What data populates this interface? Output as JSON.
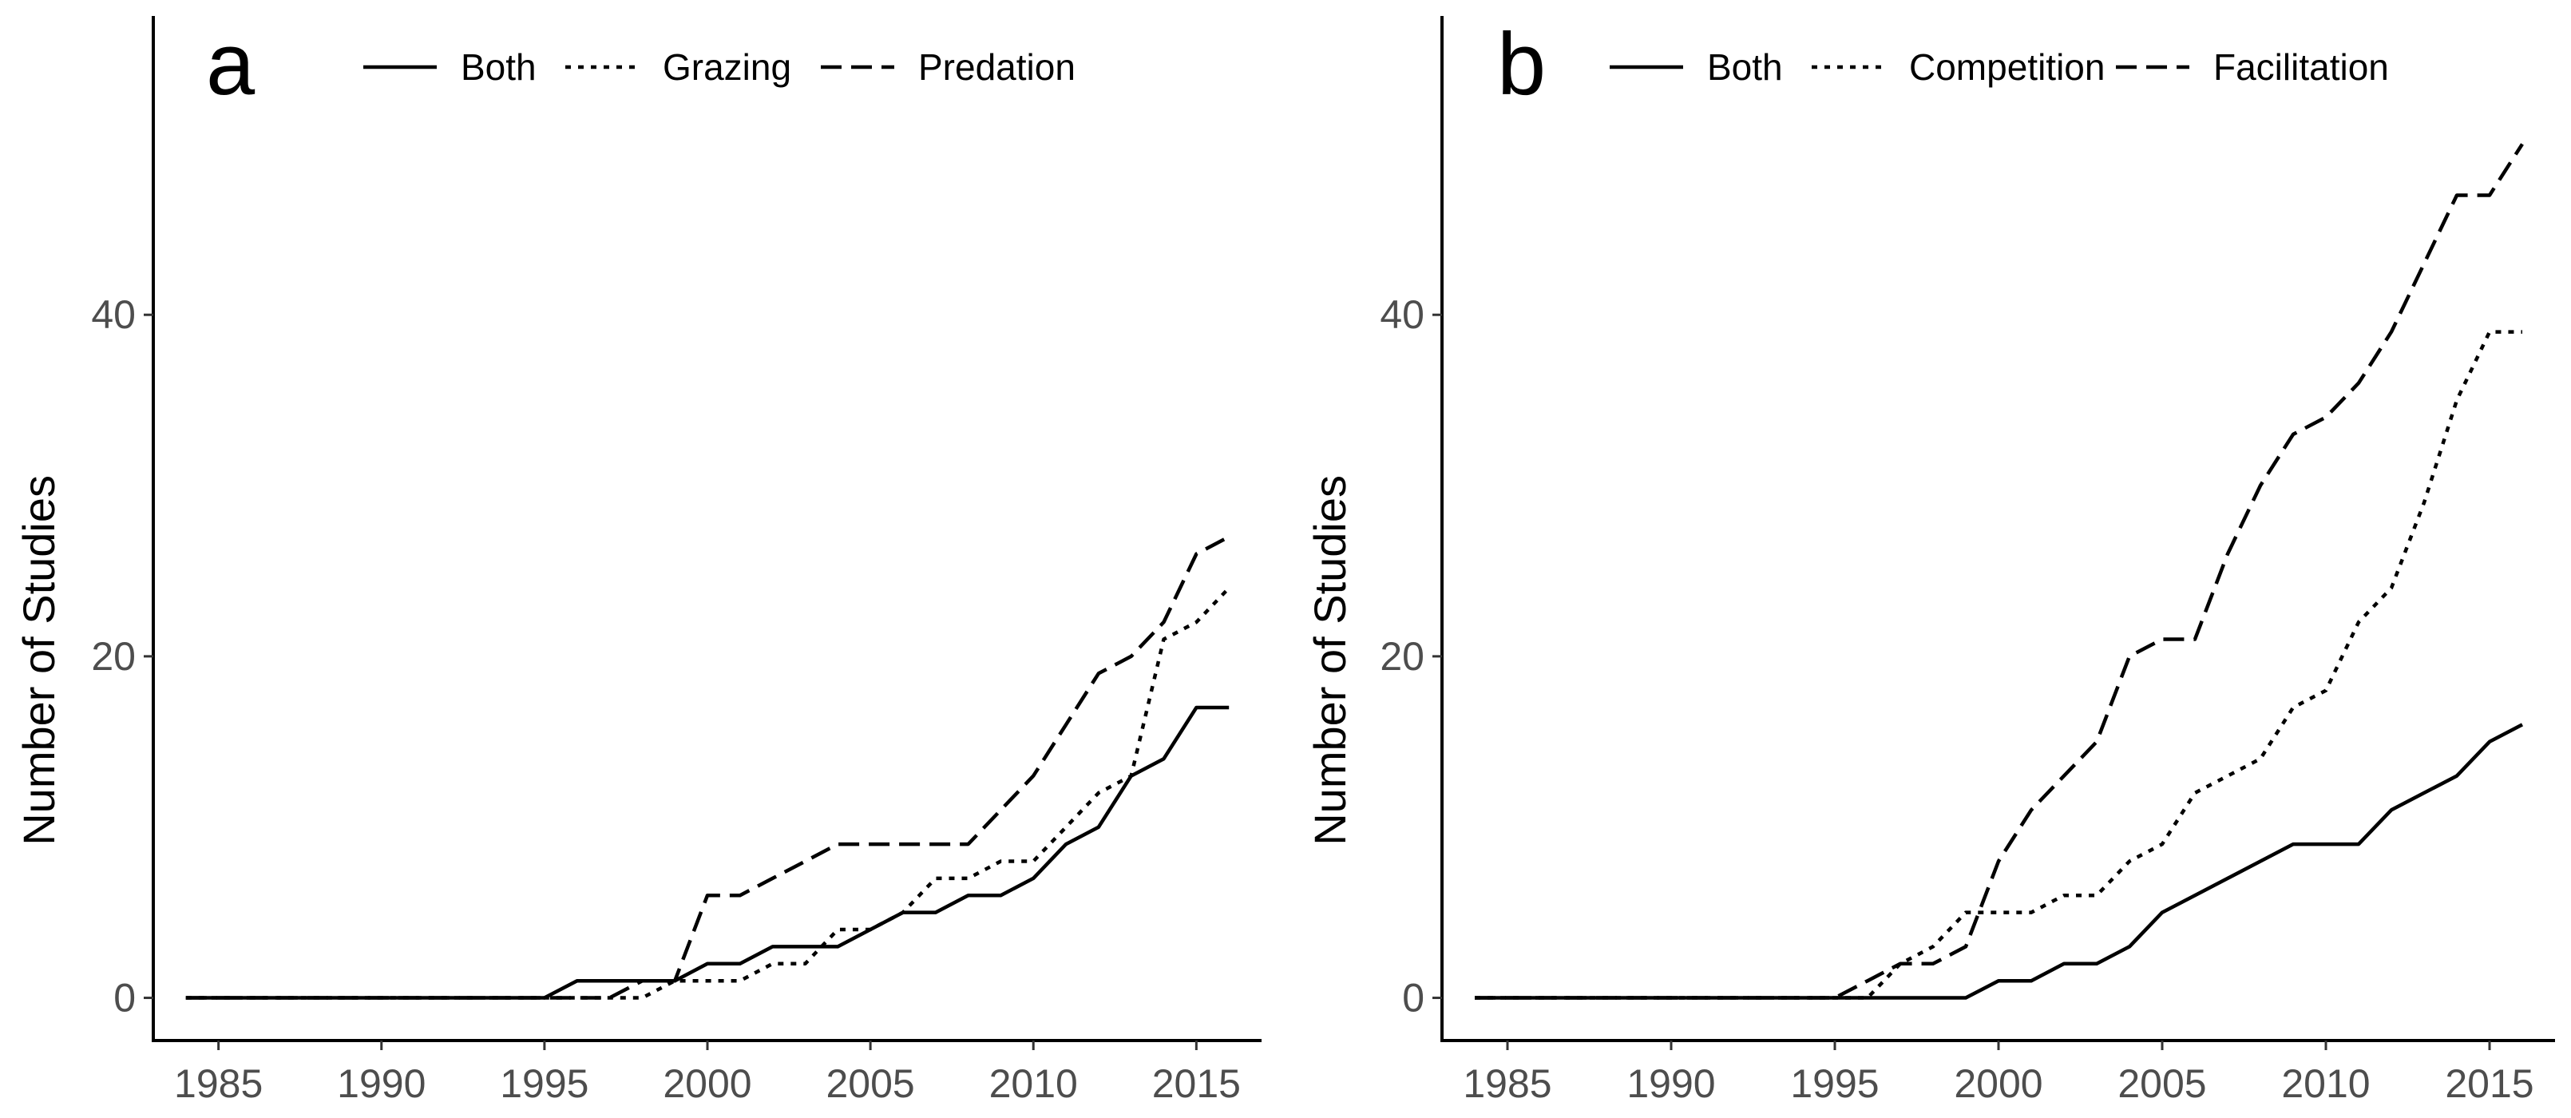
{
  "chart_data": [
    {
      "type": "line",
      "panel_label": "a",
      "title": "",
      "xlabel": "",
      "ylabel": "Number of Studies",
      "xlim": [
        1983,
        2017
      ],
      "ylim": [
        -2.5,
        57.5
      ],
      "xticks": [
        1985,
        1990,
        1995,
        2000,
        2005,
        2010,
        2015
      ],
      "yticks": [
        0,
        20,
        40
      ],
      "x": [
        1984,
        1985,
        1986,
        1987,
        1988,
        1989,
        1990,
        1991,
        1992,
        1993,
        1994,
        1995,
        1996,
        1997,
        1998,
        1999,
        2000,
        2001,
        2002,
        2003,
        2004,
        2005,
        2006,
        2007,
        2008,
        2009,
        2010,
        2011,
        2012,
        2013,
        2014,
        2015,
        2016
      ],
      "legend_position": "top",
      "series": [
        {
          "name": "Both",
          "style": "solid",
          "values": [
            0,
            0,
            0,
            0,
            0,
            0,
            0,
            0,
            0,
            0,
            0,
            0,
            1,
            1,
            1,
            1,
            2,
            2,
            3,
            3,
            3,
            4,
            5,
            5,
            6,
            6,
            7,
            9,
            10,
            13,
            14,
            17,
            17
          ]
        },
        {
          "name": "Grazing",
          "style": "dotted",
          "values": [
            0,
            0,
            0,
            0,
            0,
            0,
            0,
            0,
            0,
            0,
            0,
            0,
            0,
            0,
            0,
            1,
            1,
            1,
            2,
            2,
            4,
            4,
            5,
            7,
            7,
            8,
            8,
            10,
            12,
            13,
            21,
            22,
            24
          ]
        },
        {
          "name": "Predation",
          "style": "dashed",
          "values": [
            0,
            0,
            0,
            0,
            0,
            0,
            0,
            0,
            0,
            0,
            0,
            0,
            0,
            0,
            1,
            1,
            6,
            6,
            7,
            8,
            9,
            9,
            9,
            9,
            9,
            11,
            13,
            16,
            19,
            20,
            22,
            26,
            27
          ]
        }
      ]
    },
    {
      "type": "line",
      "panel_label": "b",
      "title": "",
      "xlabel": "",
      "ylabel": "Number of Studies",
      "xlim": [
        1983,
        2017
      ],
      "ylim": [
        -2.5,
        57.5
      ],
      "xticks": [
        1985,
        1990,
        1995,
        2000,
        2005,
        2010,
        2015
      ],
      "yticks": [
        0,
        20,
        40
      ],
      "x": [
        1984,
        1985,
        1986,
        1987,
        1988,
        1989,
        1990,
        1991,
        1992,
        1993,
        1994,
        1995,
        1996,
        1997,
        1998,
        1999,
        2000,
        2001,
        2002,
        2003,
        2004,
        2005,
        2006,
        2007,
        2008,
        2009,
        2010,
        2011,
        2012,
        2013,
        2014,
        2015,
        2016
      ],
      "legend_position": "top",
      "series": [
        {
          "name": "Both",
          "style": "solid",
          "values": [
            0,
            0,
            0,
            0,
            0,
            0,
            0,
            0,
            0,
            0,
            0,
            0,
            0,
            0,
            0,
            0,
            1,
            1,
            2,
            2,
            3,
            5,
            6,
            7,
            8,
            9,
            9,
            9,
            11,
            12,
            13,
            15,
            16
          ]
        },
        {
          "name": "Competition",
          "style": "dotted",
          "values": [
            0,
            0,
            0,
            0,
            0,
            0,
            0,
            0,
            0,
            0,
            0,
            0,
            0,
            2,
            3,
            5,
            5,
            5,
            6,
            6,
            8,
            9,
            12,
            13,
            14,
            17,
            18,
            22,
            24,
            29,
            35,
            39,
            39
          ]
        },
        {
          "name": "Facilitation",
          "style": "dashed",
          "values": [
            0,
            0,
            0,
            0,
            0,
            0,
            0,
            0,
            0,
            0,
            0,
            0,
            1,
            2,
            2,
            3,
            8,
            11,
            13,
            15,
            20,
            21,
            21,
            26,
            30,
            33,
            34,
            36,
            39,
            43,
            47,
            47,
            50
          ]
        }
      ]
    }
  ]
}
